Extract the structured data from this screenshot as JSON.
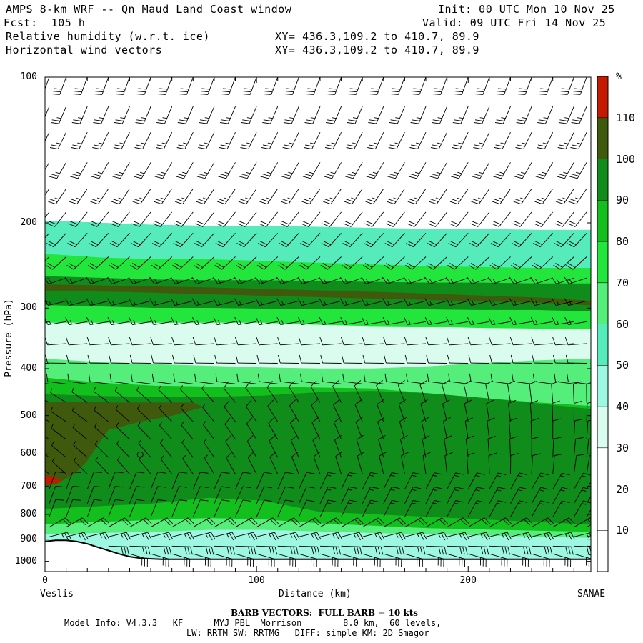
{
  "header": {
    "title": "AMPS 8-km WRF -- Qn Maud Land Coast window",
    "forecast": "Fcst:  105 h",
    "field1": "Relative humidity (w.r.t. ice)",
    "field2": "Horizontal wind vectors",
    "init": "Init: 00 UTC Mon 10 Nov 25",
    "valid": "Valid: 09 UTC Fri 14 Nov 25",
    "xy1": "XY= 436.3,109.2 to 410.7, 89.9",
    "xy2": "XY= 436.3,109.2 to 410.7, 89.9"
  },
  "footer": {
    "barb_note": "BARB VECTORS:  FULL BARB = 10 kts",
    "model_info": "Model Info: V4.3.3   KF      MYJ PBL  Morrison        8.0 km,  60 levels,",
    "model_info2": "LW: RRTM SW: RRTMG   DIFF: simple KM: 2D Smagor"
  },
  "chart_data": {
    "type": "heatmap",
    "title": "Relative humidity (w.r.t. ice)",
    "xlabel": "Distance (km)",
    "ylabel": "Pressure (hPa)",
    "x_range": [
      0,
      258
    ],
    "y_range": [
      100,
      1050
    ],
    "y_log": true,
    "x_ticks": [
      0,
      100,
      200
    ],
    "y_ticks": [
      100,
      200,
      300,
      400,
      500,
      600,
      700,
      800,
      900,
      1000
    ],
    "x_tick_labels": [
      "0",
      "100",
      "200"
    ],
    "y_tick_labels": [
      "100",
      "200",
      "300",
      "400",
      "500",
      "600",
      "700",
      "800",
      "900",
      "1000"
    ],
    "endpoints": {
      "left": "Veslis",
      "right": "SANAE"
    },
    "colorbar": {
      "unit": "%",
      "levels": [
        10,
        20,
        30,
        40,
        50,
        60,
        70,
        80,
        90,
        100,
        110
      ],
      "level_labels": [
        "10",
        "20",
        "30",
        "40",
        "50",
        "60",
        "70",
        "80",
        "90",
        "100",
        "110"
      ],
      "colors": [
        "#ffffff",
        "#ffffff",
        "#ffffff",
        "#d9fcef",
        "#9ef7e0",
        "#55ebbb",
        "#55ee7a",
        "#22e63c",
        "#13bf1d",
        "#0f8c1a",
        "#3f5a0c",
        "#c41a00"
      ]
    },
    "layers": [
      {
        "name": "upper-dry",
        "rh": 15,
        "top": [
          100,
          100,
          100,
          100,
          100,
          100,
          100,
          100,
          100,
          100,
          100
        ],
        "bottom": [
          198,
          200,
          202,
          203,
          203,
          204,
          205,
          206,
          206,
          207,
          207
        ]
      },
      {
        "name": "band-200",
        "rh": 55,
        "top": [
          198,
          200,
          202,
          203,
          203,
          204,
          205,
          206,
          206,
          207,
          207
        ],
        "bottom": [
          232,
          236,
          238,
          238,
          240,
          242,
          244,
          246,
          247,
          248,
          248
        ]
      },
      {
        "name": "band-240",
        "rh": 75,
        "top": [
          232,
          236,
          238,
          238,
          240,
          242,
          244,
          246,
          247,
          248,
          248
        ],
        "bottom": [
          258,
          260,
          262,
          263,
          263,
          264,
          265,
          266,
          266,
          267,
          267
        ]
      },
      {
        "name": "moist-280",
        "rh": 95,
        "top": [
          258,
          260,
          262,
          263,
          263,
          264,
          265,
          266,
          266,
          267,
          267
        ],
        "bottom": [
          296,
          298,
          300,
          300,
          301,
          301,
          302,
          302,
          303,
          303,
          305
        ]
      },
      {
        "name": "band-300",
        "rh": 75,
        "top": [
          296,
          298,
          300,
          300,
          301,
          301,
          302,
          302,
          303,
          303,
          305
        ],
        "bottom": [
          322,
          322,
          322,
          322,
          322,
          325,
          327,
          328,
          330,
          331,
          332
        ]
      },
      {
        "name": "dry-340",
        "rh": 38,
        "top": [
          322,
          322,
          322,
          322,
          322,
          325,
          327,
          328,
          330,
          331,
          332
        ],
        "bottom": [
          382,
          388,
          392,
          395,
          398,
          400,
          400,
          396,
          390,
          385,
          382
        ]
      },
      {
        "name": "band-400",
        "rh": 60,
        "top": [
          382,
          388,
          392,
          395,
          398,
          400,
          400,
          396,
          390,
          385,
          382
        ],
        "bottom": [
          418,
          428,
          434,
          436,
          436,
          438,
          440,
          450,
          460,
          470,
          478
        ]
      },
      {
        "name": "band-440",
        "rh": 85,
        "top": [
          418,
          428,
          434,
          436,
          436,
          438,
          440,
          450,
          460,
          470,
          478
        ],
        "bottom": [
          452,
          456,
          458,
          458,
          455,
          448,
          445,
          450,
          460,
          472,
          485
        ]
      },
      {
        "name": "moist-core",
        "rh": 95,
        "top": [
          452,
          456,
          458,
          458,
          455,
          448,
          445,
          450,
          460,
          472,
          485
        ],
        "bottom": [
          780,
          770,
          760,
          740,
          750,
          790,
          800,
          810,
          820,
          830,
          840
        ]
      },
      {
        "name": "band-780",
        "rh": 85,
        "top": [
          780,
          770,
          760,
          740,
          750,
          790,
          800,
          810,
          820,
          830,
          840
        ],
        "bottom": [
          840,
          830,
          822,
          815,
          820,
          835,
          845,
          855,
          860,
          865,
          870
        ]
      },
      {
        "name": "band-830",
        "rh": 60,
        "top": [
          840,
          830,
          822,
          815,
          820,
          835,
          845,
          855,
          860,
          865,
          870
        ],
        "bottom": [
          880,
          875,
          870,
          862,
          862,
          868,
          875,
          880,
          885,
          890,
          895
        ]
      },
      {
        "name": "band-880",
        "rh": 45,
        "top": [
          880,
          875,
          870,
          862,
          862,
          868,
          875,
          880,
          885,
          890,
          895
        ],
        "bottom": [
          1050,
          1050,
          1050,
          1050,
          1050,
          1050,
          1050,
          1050,
          1050,
          1050,
          1050
        ]
      }
    ],
    "patches": [
      {
        "name": "very-moist-west",
        "rh": 105,
        "x": [
          0,
          2,
          10,
          20,
          30,
          40,
          50,
          60,
          70,
          75,
          60,
          45,
          30,
          25,
          20,
          14,
          6,
          0
        ],
        "p": [
          470,
          468,
          468,
          468,
          470,
          470,
          470,
          470,
          470,
          480,
          500,
          515,
          535,
          575,
          620,
          660,
          690,
          700
        ]
      },
      {
        "name": "red-spot",
        "rh": 115,
        "x": [
          0,
          4,
          8,
          6,
          0
        ],
        "p": [
          665,
          668,
          682,
          690,
          692
        ]
      },
      {
        "name": "upper-moist-streak",
        "rh": 105,
        "x": [
          0,
          40,
          80,
          120,
          160,
          200,
          240,
          258,
          258,
          240,
          200,
          160,
          120,
          80,
          40,
          0
        ],
        "p": [
          268,
          270,
          272,
          275,
          278,
          282,
          286,
          290,
          296,
          293,
          290,
          287,
          284,
          281,
          278,
          276
        ]
      }
    ],
    "terrain_surface": {
      "x": [
        0,
        5,
        10,
        15,
        20,
        25,
        30,
        35,
        40,
        45,
        50,
        55,
        60,
        80,
        100,
        140,
        180,
        220,
        258
      ],
      "p": [
        910,
        905,
        905,
        910,
        920,
        935,
        950,
        965,
        978,
        985,
        988,
        990,
        990,
        990,
        990,
        990,
        990,
        990,
        990
      ]
    },
    "wind_columns_x": [
      2,
      10,
      20,
      30,
      40,
      50,
      60,
      70,
      80,
      90,
      100,
      110,
      120,
      130,
      140,
      150,
      160,
      170,
      180,
      190,
      200,
      210,
      220,
      230,
      240,
      250,
      256
    ],
    "wind_levels_p": [
      100,
      115,
      130,
      150,
      170,
      190,
      210,
      235,
      260,
      290,
      320,
      355,
      390,
      430,
      470,
      515,
      560,
      610,
      660,
      710,
      760,
      810,
      850,
      890,
      930,
      965,
      990
    ]
  }
}
